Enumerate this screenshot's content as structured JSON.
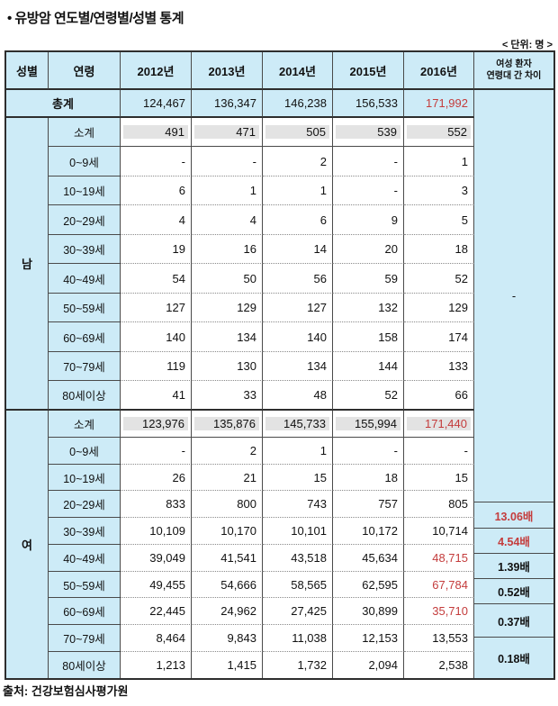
{
  "page": {
    "title": "• 유방암 연도별/연령별/성별 통계",
    "unit_label": "< 단위: 명 >",
    "source": "출처: 건강보험심사평가원"
  },
  "colors": {
    "header_bg": "#cdebf7",
    "subtotal_band_bg": "#e3e3e3",
    "highlight_red": "#c43c3c",
    "border": "#4a4a4a"
  },
  "table": {
    "header": {
      "gender": "성별",
      "age": "연령",
      "years": [
        "2012년",
        "2013년",
        "2014년",
        "2015년",
        "2016년"
      ],
      "diff": "여성 환자\n연령대 간 차이"
    },
    "total": {
      "label": "총계",
      "values": [
        "124,467",
        "136,347",
        "146,238",
        "156,533",
        "171,992"
      ]
    },
    "male": {
      "label": "남",
      "rows": [
        {
          "age": "소계",
          "values": [
            "491",
            "471",
            "505",
            "539",
            "552"
          ]
        },
        {
          "age": "0~9세",
          "values": [
            "-",
            "-",
            "2",
            "-",
            "1"
          ]
        },
        {
          "age": "10~19세",
          "values": [
            "6",
            "1",
            "1",
            "-",
            "3"
          ]
        },
        {
          "age": "20~29세",
          "values": [
            "4",
            "4",
            "6",
            "9",
            "5"
          ]
        },
        {
          "age": "30~39세",
          "values": [
            "19",
            "16",
            "14",
            "20",
            "18"
          ]
        },
        {
          "age": "40~49세",
          "values": [
            "54",
            "50",
            "56",
            "59",
            "52"
          ]
        },
        {
          "age": "50~59세",
          "values": [
            "127",
            "129",
            "127",
            "132",
            "129"
          ]
        },
        {
          "age": "60~69세",
          "values": [
            "140",
            "134",
            "140",
            "158",
            "174"
          ]
        },
        {
          "age": "70~79세",
          "values": [
            "119",
            "130",
            "134",
            "144",
            "133"
          ]
        },
        {
          "age": "80세이상",
          "values": [
            "41",
            "33",
            "48",
            "52",
            "66"
          ]
        }
      ]
    },
    "female": {
      "label": "여",
      "rows": [
        {
          "age": "소계",
          "values": [
            "123,976",
            "135,876",
            "145,733",
            "155,994",
            "171,440"
          ]
        },
        {
          "age": "0~9세",
          "values": [
            "-",
            "2",
            "1",
            "-",
            "-"
          ]
        },
        {
          "age": "10~19세",
          "values": [
            "26",
            "21",
            "15",
            "18",
            "15"
          ]
        },
        {
          "age": "20~29세",
          "values": [
            "833",
            "800",
            "743",
            "757",
            "805"
          ]
        },
        {
          "age": "30~39세",
          "values": [
            "10,109",
            "10,170",
            "10,101",
            "10,172",
            "10,714"
          ]
        },
        {
          "age": "40~49세",
          "values": [
            "39,049",
            "41,541",
            "43,518",
            "45,634",
            "48,715"
          ]
        },
        {
          "age": "50~59세",
          "values": [
            "49,455",
            "54,666",
            "58,565",
            "62,595",
            "67,784"
          ]
        },
        {
          "age": "60~69세",
          "values": [
            "22,445",
            "24,962",
            "27,425",
            "30,899",
            "35,710"
          ]
        },
        {
          "age": "70~79세",
          "values": [
            "8,464",
            "9,843",
            "11,038",
            "12,153",
            "13,553"
          ]
        },
        {
          "age": "80세이상",
          "values": [
            "1,213",
            "1,415",
            "1,732",
            "2,094",
            "2,538"
          ]
        }
      ]
    },
    "diff": {
      "male_value": "-",
      "ratios": [
        "13.06배",
        "4.54배",
        "1.39배",
        "0.52배",
        "0.37배",
        "0.18배"
      ]
    }
  }
}
